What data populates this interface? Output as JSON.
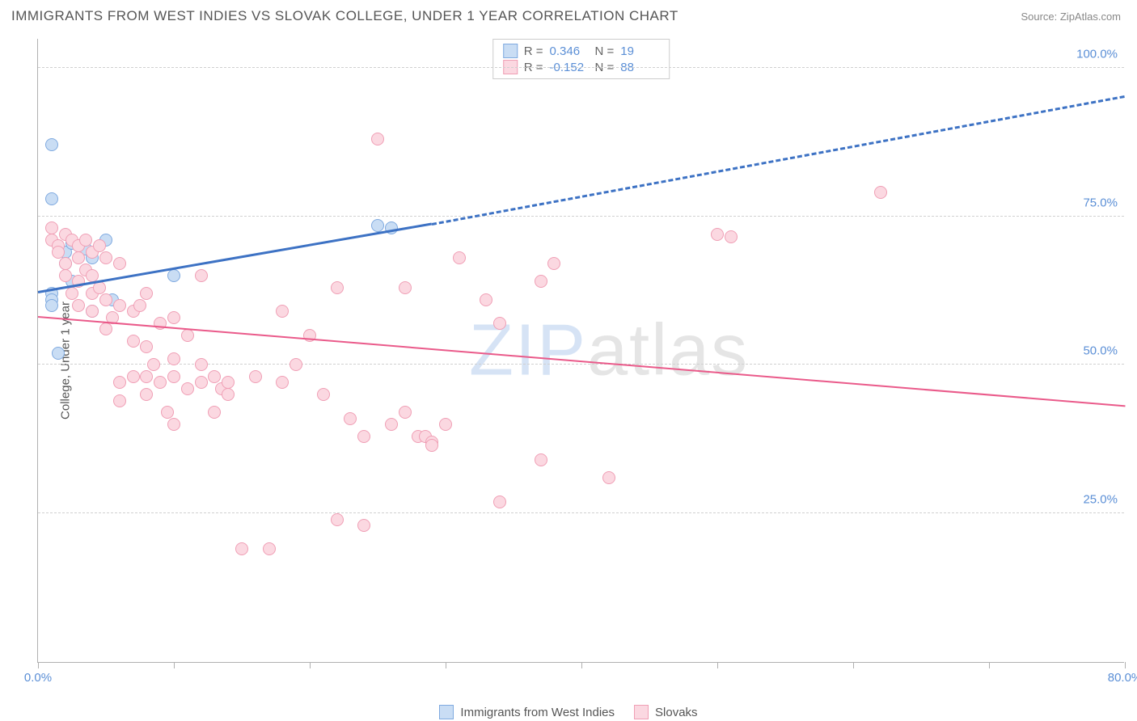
{
  "title": "IMMIGRANTS FROM WEST INDIES VS SLOVAK COLLEGE, UNDER 1 YEAR CORRELATION CHART",
  "source": "Source: ZipAtlas.com",
  "ylabel": "College, Under 1 year",
  "watermark_a": "ZIP",
  "watermark_b": "atlas",
  "chart": {
    "type": "scatter",
    "xlim": [
      0,
      80
    ],
    "ylim": [
      0,
      105
    ],
    "xtick_step": 10,
    "ytick_step": 25,
    "ytick_labels": [
      "25.0%",
      "50.0%",
      "75.0%",
      "100.0%"
    ],
    "xtick_labels_shown": {
      "0": "0.0%",
      "80": "80.0%"
    },
    "grid_color": "#d0d0d0",
    "axis_color": "#b0b0b0",
    "background_color": "#ffffff"
  },
  "series": [
    {
      "name": "Immigrants from West Indies",
      "marker_fill": "#c9ddf4",
      "marker_stroke": "#7faae0",
      "marker_size": 16,
      "trend_color": "#3d72c4",
      "trend_width": 3,
      "R": "0.346",
      "N": "19",
      "trend": {
        "x1": 0,
        "y1": 62,
        "x2_solid": 29,
        "y2_solid": 73.5,
        "x2": 80,
        "y2": 95
      },
      "points": [
        [
          1,
          87
        ],
        [
          1,
          78
        ],
        [
          1,
          62
        ],
        [
          1,
          61
        ],
        [
          1,
          60
        ],
        [
          1.5,
          52
        ],
        [
          2,
          69
        ],
        [
          2,
          67
        ],
        [
          2.5,
          70.5
        ],
        [
          2.5,
          64
        ],
        [
          3,
          70
        ],
        [
          3.5,
          69.5
        ],
        [
          4,
          68
        ],
        [
          4,
          59
        ],
        [
          5,
          71
        ],
        [
          5.5,
          61
        ],
        [
          10,
          65
        ],
        [
          25,
          73.5
        ],
        [
          26,
          73
        ]
      ]
    },
    {
      "name": "Slovaks",
      "marker_fill": "#fbd8e1",
      "marker_stroke": "#f09fb5",
      "marker_size": 16,
      "trend_color": "#ea5a8a",
      "trend_width": 2,
      "R": "-0.152",
      "N": "88",
      "trend": {
        "x1": 0,
        "y1": 58,
        "x2_solid": 80,
        "y2_solid": 43,
        "x2": 80,
        "y2": 43
      },
      "points": [
        [
          1,
          73
        ],
        [
          1,
          71
        ],
        [
          1.5,
          70
        ],
        [
          1.5,
          69
        ],
        [
          2,
          72
        ],
        [
          2,
          67
        ],
        [
          2,
          65
        ],
        [
          2.5,
          71
        ],
        [
          2.5,
          62
        ],
        [
          3,
          70
        ],
        [
          3,
          68
        ],
        [
          3,
          64
        ],
        [
          3,
          60
        ],
        [
          3.5,
          71
        ],
        [
          3.5,
          66
        ],
        [
          4,
          69
        ],
        [
          4,
          65
        ],
        [
          4,
          62
        ],
        [
          4,
          59
        ],
        [
          4.5,
          70
        ],
        [
          4.5,
          63
        ],
        [
          5,
          68
        ],
        [
          5,
          61
        ],
        [
          5,
          56
        ],
        [
          5.5,
          58
        ],
        [
          6,
          67
        ],
        [
          6,
          60
        ],
        [
          6,
          47
        ],
        [
          6,
          44
        ],
        [
          7,
          59
        ],
        [
          7,
          54
        ],
        [
          7,
          48
        ],
        [
          7.5,
          60
        ],
        [
          8,
          62
        ],
        [
          8,
          53
        ],
        [
          8,
          48
        ],
        [
          8,
          45
        ],
        [
          8.5,
          50
        ],
        [
          9,
          57
        ],
        [
          9,
          47
        ],
        [
          9.5,
          42
        ],
        [
          10,
          58
        ],
        [
          10,
          51
        ],
        [
          10,
          48
        ],
        [
          10,
          40
        ],
        [
          11,
          55
        ],
        [
          11,
          46
        ],
        [
          12,
          65
        ],
        [
          12,
          50
        ],
        [
          12,
          47
        ],
        [
          13,
          48
        ],
        [
          13,
          42
        ],
        [
          13.5,
          46
        ],
        [
          14,
          47
        ],
        [
          14,
          45
        ],
        [
          15,
          19
        ],
        [
          16,
          48
        ],
        [
          17,
          19
        ],
        [
          18,
          59
        ],
        [
          18,
          47
        ],
        [
          19,
          50
        ],
        [
          20,
          55
        ],
        [
          21,
          45
        ],
        [
          22,
          63
        ],
        [
          22,
          24
        ],
        [
          23,
          41
        ],
        [
          24,
          38
        ],
        [
          24,
          23
        ],
        [
          25,
          88
        ],
        [
          26,
          40
        ],
        [
          27,
          63
        ],
        [
          27,
          42
        ],
        [
          28,
          38
        ],
        [
          28.5,
          38
        ],
        [
          29,
          37
        ],
        [
          29,
          36.5
        ],
        [
          30,
          40
        ],
        [
          31,
          68
        ],
        [
          33,
          61
        ],
        [
          34,
          57
        ],
        [
          34,
          27
        ],
        [
          37,
          64
        ],
        [
          37,
          34
        ],
        [
          38,
          67
        ],
        [
          42,
          31
        ],
        [
          50,
          72
        ],
        [
          51,
          71.5
        ],
        [
          62,
          79
        ]
      ]
    }
  ],
  "bottom_legend": [
    {
      "label": "Immigrants from West Indies",
      "fill": "#c9ddf4",
      "stroke": "#7faae0"
    },
    {
      "label": "Slovaks",
      "fill": "#fbd8e1",
      "stroke": "#f09fb5"
    }
  ]
}
